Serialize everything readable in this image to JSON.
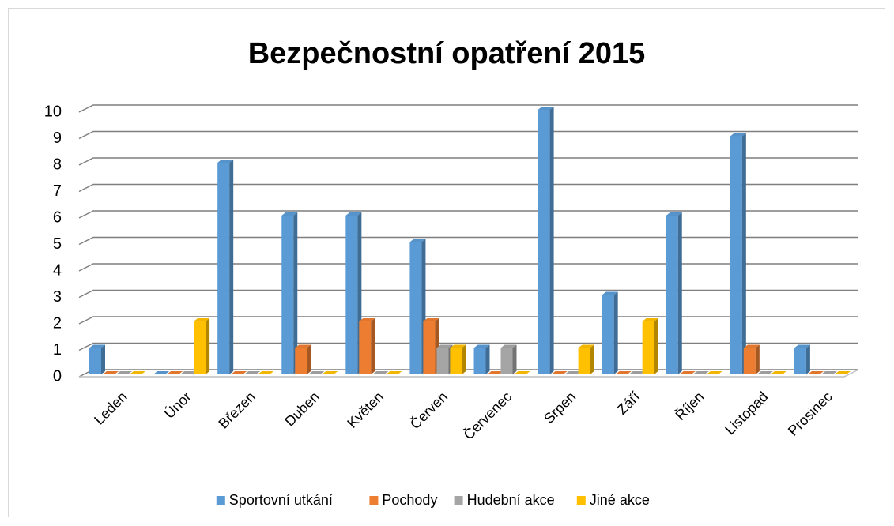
{
  "chart_data": {
    "type": "bar3d",
    "title": "Bezpečnostní opatření 2015",
    "categories": [
      "Leden",
      "Únor",
      "Březen",
      "Duben",
      "Květen",
      "Červen",
      "Červenec",
      "Srpen",
      "Září",
      "Říjen",
      "Listopad",
      "Prosinec"
    ],
    "series": [
      {
        "name": "Sportovní utkání",
        "color": "#5b9bd5",
        "values": [
          1,
          0,
          8,
          6,
          6,
          5,
          1,
          10,
          3,
          6,
          9,
          1
        ]
      },
      {
        "name": "Pochody",
        "color": "#ed7d31",
        "values": [
          0,
          0,
          0,
          1,
          2,
          2,
          0,
          0,
          0,
          0,
          1,
          0
        ]
      },
      {
        "name": "Hudební akce",
        "color": "#a5a5a5",
        "values": [
          0,
          0,
          0,
          0,
          0,
          1,
          1,
          0,
          0,
          0,
          0,
          0
        ]
      },
      {
        "name": "Jiné akce",
        "color": "#ffc000",
        "values": [
          0,
          2,
          0,
          0,
          0,
          1,
          0,
          1,
          2,
          0,
          0,
          0
        ]
      }
    ],
    "ylim": [
      0,
      10
    ],
    "yticks": [
      0,
      1,
      2,
      3,
      4,
      5,
      6,
      7,
      8,
      9,
      10
    ],
    "grid": true,
    "legend": "bottom"
  }
}
